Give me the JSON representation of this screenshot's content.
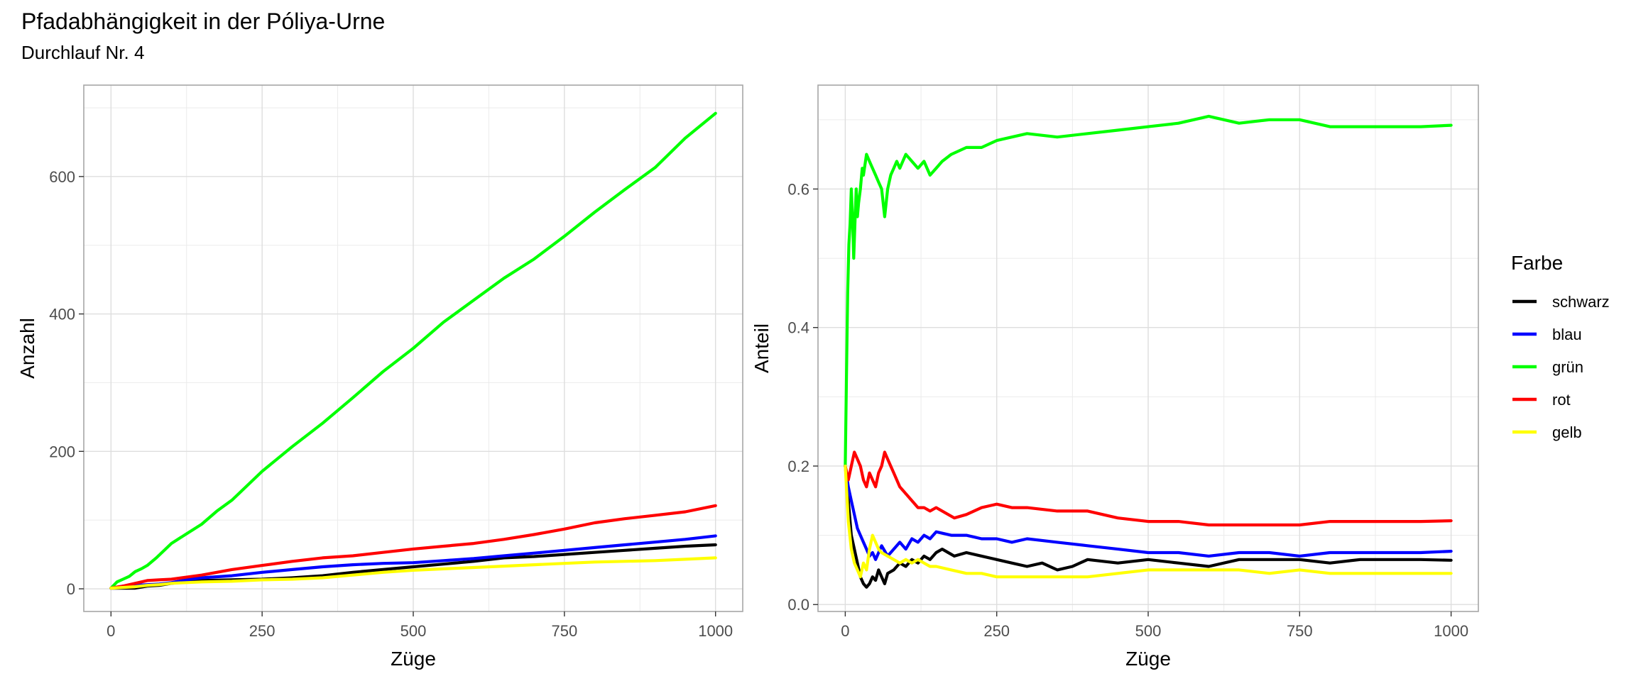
{
  "title": "Pfadabhängigkeit in der Póliya-Urne",
  "subtitle": "Durchlauf Nr. 4",
  "legend": {
    "title": "Farbe",
    "items": [
      {
        "label": "schwarz",
        "color": "#000000"
      },
      {
        "label": "blau",
        "color": "#0000FF"
      },
      {
        "label": "grün",
        "color": "#00FF00"
      },
      {
        "label": "rot",
        "color": "#FF0000"
      },
      {
        "label": "gelb",
        "color": "#FFFF00"
      }
    ]
  },
  "chart_data": [
    {
      "type": "line",
      "xlabel": "Züge",
      "ylabel": "Anzahl",
      "xlim": [
        -45,
        1045
      ],
      "ylim": [
        -33,
        733
      ],
      "xticks": [
        0,
        250,
        500,
        750,
        1000
      ],
      "yticks": [
        0,
        200,
        400,
        600
      ],
      "grid": true,
      "series": [
        {
          "name": "schwarz",
          "color": "#000000",
          "x": [
            0,
            20,
            40,
            60,
            80,
            100,
            125,
            150,
            200,
            250,
            300,
            350,
            400,
            450,
            500,
            550,
            600,
            650,
            700,
            750,
            800,
            850,
            900,
            950,
            1000
          ],
          "y": [
            1,
            1,
            1,
            4,
            5,
            8,
            10,
            12,
            13,
            14,
            16,
            19,
            24,
            28,
            32,
            36,
            40,
            45,
            47,
            50,
            53,
            56,
            59,
            62,
            64
          ]
        },
        {
          "name": "blau",
          "color": "#0000FF",
          "x": [
            0,
            20,
            40,
            60,
            80,
            100,
            125,
            150,
            200,
            250,
            300,
            350,
            400,
            450,
            500,
            550,
            600,
            650,
            700,
            750,
            800,
            850,
            900,
            950,
            1000
          ],
          "y": [
            1,
            4,
            5,
            6,
            7,
            9,
            13,
            16,
            19,
            24,
            28,
            32,
            35,
            37,
            38,
            41,
            44,
            48,
            52,
            56,
            60,
            64,
            68,
            72,
            77
          ]
        },
        {
          "name": "grün",
          "color": "#00FF00",
          "x": [
            0,
            10,
            20,
            30,
            40,
            50,
            60,
            75,
            100,
            125,
            150,
            175,
            200,
            250,
            300,
            350,
            400,
            450,
            500,
            550,
            600,
            650,
            700,
            750,
            800,
            850,
            900,
            950,
            1000
          ],
          "y": [
            1,
            10,
            14,
            18,
            25,
            29,
            34,
            45,
            66,
            80,
            94,
            113,
            129,
            171,
            207,
            241,
            278,
            316,
            350,
            388,
            420,
            452,
            480,
            513,
            548,
            581,
            613,
            656,
            692
          ]
        },
        {
          "name": "rot",
          "color": "#FF0000",
          "x": [
            0,
            20,
            40,
            60,
            80,
            100,
            125,
            150,
            200,
            250,
            300,
            350,
            400,
            450,
            500,
            550,
            600,
            650,
            700,
            750,
            800,
            850,
            900,
            950,
            1000
          ],
          "y": [
            1,
            4,
            8,
            12,
            13,
            14,
            17,
            20,
            28,
            34,
            40,
            45,
            48,
            53,
            58,
            62,
            66,
            72,
            79,
            87,
            96,
            102,
            107,
            112,
            121
          ]
        },
        {
          "name": "gelb",
          "color": "#FFFF00",
          "x": [
            0,
            20,
            40,
            60,
            80,
            100,
            125,
            150,
            200,
            250,
            300,
            350,
            400,
            450,
            500,
            550,
            600,
            650,
            700,
            750,
            800,
            850,
            900,
            950,
            1000
          ],
          "y": [
            1,
            2,
            3,
            5,
            6,
            8,
            9,
            10,
            11,
            13,
            14,
            16,
            20,
            24,
            27,
            29,
            31,
            33,
            35,
            37,
            39,
            40,
            41,
            43,
            45
          ]
        }
      ]
    },
    {
      "type": "line",
      "xlabel": "Züge",
      "ylabel": "Anteil",
      "xlim": [
        -45,
        1045
      ],
      "ylim": [
        -0.01,
        0.75
      ],
      "xticks": [
        0,
        250,
        500,
        750,
        1000
      ],
      "yticks": [
        0.0,
        0.2,
        0.4,
        0.6
      ],
      "ytick_labels": [
        "0.0",
        "0.2",
        "0.4",
        "0.6"
      ],
      "grid": true,
      "series": [
        {
          "name": "schwarz",
          "color": "#000000",
          "x": [
            0,
            5,
            10,
            15,
            20,
            25,
            30,
            35,
            40,
            45,
            50,
            55,
            60,
            65,
            70,
            80,
            90,
            100,
            110,
            120,
            130,
            140,
            150,
            160,
            170,
            180,
            200,
            225,
            250,
            275,
            300,
            325,
            350,
            375,
            400,
            450,
            500,
            550,
            600,
            650,
            700,
            750,
            800,
            850,
            900,
            950,
            1000
          ],
          "y": [
            0.2,
            0.15,
            0.1,
            0.08,
            0.06,
            0.04,
            0.03,
            0.025,
            0.03,
            0.04,
            0.035,
            0.05,
            0.04,
            0.03,
            0.045,
            0.05,
            0.06,
            0.055,
            0.065,
            0.06,
            0.07,
            0.065,
            0.075,
            0.08,
            0.075,
            0.07,
            0.075,
            0.07,
            0.065,
            0.06,
            0.055,
            0.06,
            0.05,
            0.055,
            0.065,
            0.06,
            0.065,
            0.06,
            0.055,
            0.065,
            0.065,
            0.065,
            0.06,
            0.065,
            0.065,
            0.065,
            0.064
          ]
        },
        {
          "name": "blau",
          "color": "#0000FF",
          "x": [
            0,
            5,
            10,
            15,
            20,
            25,
            30,
            35,
            40,
            45,
            50,
            60,
            70,
            80,
            90,
            100,
            110,
            120,
            130,
            140,
            150,
            175,
            200,
            225,
            250,
            275,
            300,
            350,
            400,
            450,
            500,
            550,
            600,
            650,
            700,
            750,
            800,
            850,
            900,
            950,
            1000
          ],
          "y": [
            0.2,
            0.17,
            0.15,
            0.13,
            0.11,
            0.1,
            0.09,
            0.08,
            0.07,
            0.075,
            0.065,
            0.085,
            0.07,
            0.08,
            0.09,
            0.08,
            0.095,
            0.09,
            0.1,
            0.095,
            0.105,
            0.1,
            0.1,
            0.095,
            0.095,
            0.09,
            0.095,
            0.09,
            0.085,
            0.08,
            0.075,
            0.075,
            0.07,
            0.075,
            0.075,
            0.07,
            0.075,
            0.075,
            0.075,
            0.075,
            0.077
          ]
        },
        {
          "name": "grün",
          "color": "#00FF00",
          "x": [
            0,
            2,
            4,
            6,
            8,
            10,
            12,
            14,
            16,
            18,
            20,
            22,
            25,
            28,
            30,
            35,
            40,
            45,
            50,
            55,
            60,
            65,
            70,
            75,
            80,
            85,
            90,
            95,
            100,
            110,
            120,
            130,
            140,
            150,
            160,
            175,
            200,
            225,
            250,
            275,
            300,
            350,
            400,
            450,
            500,
            550,
            600,
            650,
            700,
            750,
            800,
            850,
            900,
            950,
            1000
          ],
          "y": [
            0.2,
            0.33,
            0.45,
            0.52,
            0.55,
            0.6,
            0.56,
            0.5,
            0.55,
            0.6,
            0.56,
            0.58,
            0.6,
            0.63,
            0.62,
            0.65,
            0.64,
            0.63,
            0.62,
            0.61,
            0.6,
            0.56,
            0.6,
            0.62,
            0.63,
            0.64,
            0.63,
            0.64,
            0.65,
            0.64,
            0.63,
            0.64,
            0.62,
            0.63,
            0.64,
            0.65,
            0.66,
            0.66,
            0.67,
            0.675,
            0.68,
            0.675,
            0.68,
            0.685,
            0.69,
            0.695,
            0.705,
            0.695,
            0.7,
            0.7,
            0.69,
            0.69,
            0.69,
            0.69,
            0.692
          ]
        },
        {
          "name": "rot",
          "color": "#FF0000",
          "x": [
            0,
            5,
            10,
            15,
            20,
            25,
            30,
            35,
            40,
            45,
            50,
            55,
            60,
            65,
            70,
            75,
            80,
            90,
            100,
            110,
            120,
            130,
            140,
            150,
            160,
            170,
            180,
            200,
            225,
            250,
            275,
            300,
            350,
            400,
            450,
            500,
            550,
            600,
            650,
            700,
            750,
            800,
            850,
            900,
            950,
            1000
          ],
          "y": [
            0.2,
            0.18,
            0.2,
            0.22,
            0.21,
            0.2,
            0.18,
            0.17,
            0.19,
            0.18,
            0.17,
            0.19,
            0.2,
            0.22,
            0.21,
            0.2,
            0.19,
            0.17,
            0.16,
            0.15,
            0.14,
            0.14,
            0.135,
            0.14,
            0.135,
            0.13,
            0.125,
            0.13,
            0.14,
            0.145,
            0.14,
            0.14,
            0.135,
            0.135,
            0.125,
            0.12,
            0.12,
            0.115,
            0.115,
            0.115,
            0.115,
            0.12,
            0.12,
            0.12,
            0.12,
            0.121
          ]
        },
        {
          "name": "gelb",
          "color": "#FFFF00",
          "x": [
            0,
            5,
            10,
            15,
            20,
            25,
            30,
            35,
            40,
            45,
            50,
            55,
            60,
            70,
            80,
            90,
            100,
            110,
            120,
            130,
            140,
            150,
            175,
            200,
            225,
            250,
            275,
            300,
            350,
            400,
            450,
            500,
            550,
            600,
            650,
            700,
            750,
            800,
            850,
            900,
            950,
            1000
          ],
          "y": [
            0.2,
            0.12,
            0.08,
            0.06,
            0.05,
            0.04,
            0.06,
            0.05,
            0.08,
            0.1,
            0.09,
            0.08,
            0.075,
            0.07,
            0.065,
            0.06,
            0.065,
            0.06,
            0.065,
            0.06,
            0.055,
            0.055,
            0.05,
            0.045,
            0.045,
            0.04,
            0.04,
            0.04,
            0.04,
            0.04,
            0.045,
            0.05,
            0.05,
            0.05,
            0.05,
            0.045,
            0.05,
            0.045,
            0.045,
            0.045,
            0.045,
            0.045
          ]
        }
      ]
    }
  ]
}
